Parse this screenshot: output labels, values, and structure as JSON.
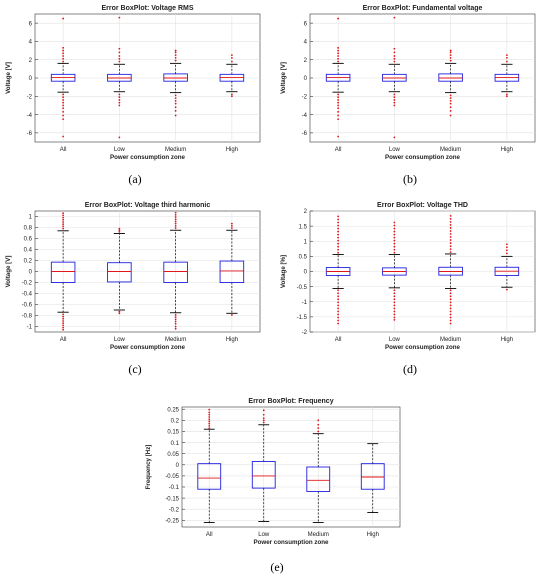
{
  "chart_data": [
    {
      "type": "box",
      "title": "Error BoxPlot: Voltage RMS",
      "xlabel": "Power consumption zone",
      "ylabel": "Voltage [V]",
      "caption": "(a)",
      "ylim": [
        -7,
        7
      ],
      "yticks": [
        -6,
        -4,
        -2,
        0,
        2,
        4,
        6
      ],
      "ytick_labels": [
        "-6",
        "-4",
        "-2",
        "0",
        "2",
        "4",
        "6"
      ],
      "categories": [
        "All",
        "Low",
        "Medium",
        "High"
      ],
      "boxes": [
        {
          "q1": -0.35,
          "median": 0.05,
          "q3": 0.4,
          "whisker_low": -1.55,
          "whisker_high": 1.6,
          "outliers_low": [
            -1.8,
            -2.1,
            -2.4,
            -2.7,
            -3.0,
            -3.3,
            -3.7,
            -4.1,
            -4.5,
            -6.4
          ],
          "outliers_high": [
            1.8,
            2.1,
            2.4,
            2.7,
            3.0,
            3.3,
            6.5
          ]
        },
        {
          "q1": -0.35,
          "median": 0.0,
          "q3": 0.4,
          "whisker_low": -1.5,
          "whisker_high": 1.5,
          "outliers_low": [
            -1.8,
            -2.1,
            -2.4,
            -2.7,
            -3.0,
            -6.5
          ],
          "outliers_high": [
            1.8,
            2.1,
            2.4,
            2.8,
            3.2,
            6.6
          ]
        },
        {
          "q1": -0.35,
          "median": 0.0,
          "q3": 0.45,
          "whisker_low": -1.6,
          "whisker_high": 1.6,
          "outliers_low": [
            -1.9,
            -2.2,
            -2.5,
            -2.8,
            -3.2,
            -3.6,
            -4.1
          ],
          "outliers_high": [
            1.9,
            2.2,
            2.5,
            2.8,
            3.0
          ]
        },
        {
          "q1": -0.35,
          "median": 0.05,
          "q3": 0.4,
          "whisker_low": -1.5,
          "whisker_high": 1.5,
          "outliers_low": [
            -1.8,
            -2.0
          ],
          "outliers_high": [
            1.8,
            2.2,
            2.5
          ]
        }
      ]
    },
    {
      "type": "box",
      "title": "Error BoxPlot: Fundamental voltage",
      "xlabel": "Power consumption zone",
      "ylabel": "Voltage [V]",
      "caption": "(b)",
      "ylim": [
        -7,
        7
      ],
      "yticks": [
        -6,
        -4,
        -2,
        0,
        2,
        4,
        6
      ],
      "ytick_labels": [
        "-6",
        "-4",
        "-2",
        "0",
        "2",
        "4",
        "6"
      ],
      "categories": [
        "All",
        "Low",
        "Medium",
        "High"
      ],
      "boxes": [
        {
          "q1": -0.35,
          "median": 0.05,
          "q3": 0.4,
          "whisker_low": -1.55,
          "whisker_high": 1.6,
          "outliers_low": [
            -1.8,
            -2.1,
            -2.4,
            -2.7,
            -3.0,
            -3.3,
            -3.7,
            -4.1,
            -4.5,
            -6.4
          ],
          "outliers_high": [
            1.8,
            2.1,
            2.4,
            2.7,
            3.0,
            3.3,
            6.5
          ]
        },
        {
          "q1": -0.35,
          "median": 0.0,
          "q3": 0.4,
          "whisker_low": -1.5,
          "whisker_high": 1.5,
          "outliers_low": [
            -1.8,
            -2.1,
            -2.4,
            -2.7,
            -3.0,
            -6.5
          ],
          "outliers_high": [
            1.8,
            2.1,
            2.4,
            2.8,
            3.2,
            6.6
          ]
        },
        {
          "q1": -0.35,
          "median": 0.0,
          "q3": 0.45,
          "whisker_low": -1.6,
          "whisker_high": 1.6,
          "outliers_low": [
            -1.9,
            -2.2,
            -2.5,
            -2.8,
            -3.2,
            -3.6,
            -4.1
          ],
          "outliers_high": [
            1.9,
            2.2,
            2.5,
            2.8,
            3.0
          ]
        },
        {
          "q1": -0.35,
          "median": 0.05,
          "q3": 0.4,
          "whisker_low": -1.5,
          "whisker_high": 1.5,
          "outliers_low": [
            -1.8,
            -2.0
          ],
          "outliers_high": [
            1.8,
            2.2,
            2.5
          ]
        }
      ]
    },
    {
      "type": "box",
      "title": "Error BoxPlot: Voltage third harmonic",
      "xlabel": "Power consumption zone",
      "ylabel": "Voltage [V]",
      "caption": "(c)",
      "ylim": [
        -1.1,
        1.1
      ],
      "yticks": [
        -1,
        -0.8,
        -0.6,
        -0.4,
        -0.2,
        0,
        0.2,
        0.4,
        0.6,
        0.8,
        1
      ],
      "ytick_labels": [
        "-1",
        "-0.8",
        "-0.6",
        "-0.4",
        "-0.2",
        "0",
        "0.2",
        "0.4",
        "0.6",
        "0.8",
        "1"
      ],
      "categories": [
        "All",
        "Low",
        "Medium",
        "High"
      ],
      "boxes": [
        {
          "q1": -0.2,
          "median": 0.0,
          "q3": 0.17,
          "whisker_low": -0.74,
          "whisker_high": 0.74,
          "outliers_low": [
            -0.78,
            -0.82,
            -0.86,
            -0.9,
            -0.94,
            -0.98,
            -1.02,
            -1.06
          ],
          "outliers_high": [
            0.78,
            0.82,
            0.86,
            0.9,
            0.94,
            0.98,
            1.02,
            1.06
          ]
        },
        {
          "q1": -0.19,
          "median": 0.0,
          "q3": 0.16,
          "whisker_low": -0.7,
          "whisker_high": 0.69,
          "outliers_low": [
            -0.73,
            -0.76
          ],
          "outliers_high": [
            0.72,
            0.75,
            0.78
          ]
        },
        {
          "q1": -0.2,
          "median": 0.0,
          "q3": 0.17,
          "whisker_low": -0.75,
          "whisker_high": 0.75,
          "outliers_low": [
            -0.79,
            -0.83,
            -0.87,
            -0.91,
            -0.95,
            -1.0,
            -1.04
          ],
          "outliers_high": [
            0.79,
            0.83,
            0.87,
            0.91,
            0.95,
            0.99,
            1.03,
            1.07
          ]
        },
        {
          "q1": -0.2,
          "median": 0.01,
          "q3": 0.19,
          "whisker_low": -0.76,
          "whisker_high": 0.75,
          "outliers_low": [
            -0.79
          ],
          "outliers_high": [
            0.79,
            0.83,
            0.87
          ]
        }
      ]
    },
    {
      "type": "box",
      "title": "Error BoxPlot: Voltage THD",
      "xlabel": "Power consumption zone",
      "ylabel": "Voltage [%]",
      "caption": "(d)",
      "ylim": [
        -2,
        2
      ],
      "yticks": [
        -2,
        -1.5,
        -1,
        -0.5,
        0,
        0.5,
        1,
        1.5,
        2
      ],
      "ytick_labels": [
        "-2",
        "-1.5",
        "-1",
        "-0.5",
        "0",
        "0.5",
        "1",
        "1.5",
        "2"
      ],
      "categories": [
        "All",
        "Low",
        "Medium",
        "High"
      ],
      "boxes": [
        {
          "q1": -0.13,
          "median": 0.0,
          "q3": 0.13,
          "whisker_low": -0.56,
          "whisker_high": 0.56,
          "outliers_low": [
            -0.62,
            -0.72,
            -0.82,
            -0.92,
            -1.02,
            -1.12,
            -1.22,
            -1.32,
            -1.42,
            -1.52,
            -1.62,
            -1.72
          ],
          "outliers_high": [
            0.62,
            0.72,
            0.82,
            0.92,
            1.02,
            1.12,
            1.22,
            1.32,
            1.42,
            1.52,
            1.62,
            1.72,
            1.82
          ]
        },
        {
          "q1": -0.12,
          "median": 0.0,
          "q3": 0.12,
          "whisker_low": -0.54,
          "whisker_high": 0.56,
          "outliers_low": [
            -0.62,
            -0.72,
            -0.82,
            -0.92,
            -1.02,
            -1.12,
            -1.22,
            -1.32,
            -1.42,
            -1.52,
            -1.6
          ],
          "outliers_high": [
            0.62,
            0.72,
            0.82,
            0.92,
            1.02,
            1.12,
            1.22,
            1.32,
            1.42,
            1.52,
            1.62
          ]
        },
        {
          "q1": -0.12,
          "median": 0.0,
          "q3": 0.14,
          "whisker_low": -0.56,
          "whisker_high": 0.58,
          "outliers_low": [
            -0.62,
            -0.72,
            -0.82,
            -0.92,
            -1.02,
            -1.12,
            -1.22,
            -1.32,
            -1.42,
            -1.52,
            -1.62,
            -1.72
          ],
          "outliers_high": [
            0.64,
            0.74,
            0.84,
            0.94,
            1.04,
            1.14,
            1.24,
            1.34,
            1.44,
            1.54,
            1.64,
            1.74,
            1.84
          ]
        },
        {
          "q1": -0.13,
          "median": 0.01,
          "q3": 0.14,
          "whisker_low": -0.52,
          "whisker_high": 0.5,
          "outliers_low": [
            -0.6
          ],
          "outliers_high": [
            0.6,
            0.7,
            0.8,
            0.9
          ]
        }
      ]
    },
    {
      "type": "box",
      "title": "Error BoxPlot: Frequency",
      "xlabel": "Power consumption zone",
      "ylabel": "Frequency [Hz]",
      "caption": "(e)",
      "ylim": [
        -0.28,
        0.26
      ],
      "yticks": [
        -0.25,
        -0.2,
        -0.15,
        -0.1,
        -0.05,
        0,
        0.05,
        0.1,
        0.15,
        0.2,
        0.25
      ],
      "ytick_labels": [
        "-0.25",
        "-0.2",
        "-0.15",
        "-0.1",
        "-0.05",
        "0",
        "0.05",
        "0.1",
        "0.15",
        "0.2",
        "0.25"
      ],
      "categories": [
        "All",
        "Low",
        "Medium",
        "High"
      ],
      "boxes": [
        {
          "q1": -0.11,
          "median": -0.06,
          "q3": 0.005,
          "whisker_low": -0.26,
          "whisker_high": 0.16,
          "outliers_low": [],
          "outliers_high": [
            0.165,
            0.175,
            0.185,
            0.195,
            0.205,
            0.215,
            0.225,
            0.235,
            0.248
          ]
        },
        {
          "q1": -0.105,
          "median": -0.05,
          "q3": 0.015,
          "whisker_low": -0.255,
          "whisker_high": 0.18,
          "outliers_low": [],
          "outliers_high": [
            0.19,
            0.2,
            0.21,
            0.225,
            0.245
          ]
        },
        {
          "q1": -0.12,
          "median": -0.07,
          "q3": -0.01,
          "whisker_low": -0.26,
          "whisker_high": 0.14,
          "outliers_low": [],
          "outliers_high": [
            0.15,
            0.165,
            0.18,
            0.2
          ]
        },
        {
          "q1": -0.11,
          "median": -0.055,
          "q3": 0.005,
          "whisker_low": -0.215,
          "whisker_high": 0.095,
          "outliers_low": [],
          "outliers_high": []
        }
      ]
    }
  ],
  "colors": {
    "box": "#1f1fe0",
    "median": "#e0161b",
    "outlier": "#e0161b",
    "whisker": "#000000",
    "grid": "#e2e2e2",
    "axis": "#333333"
  }
}
